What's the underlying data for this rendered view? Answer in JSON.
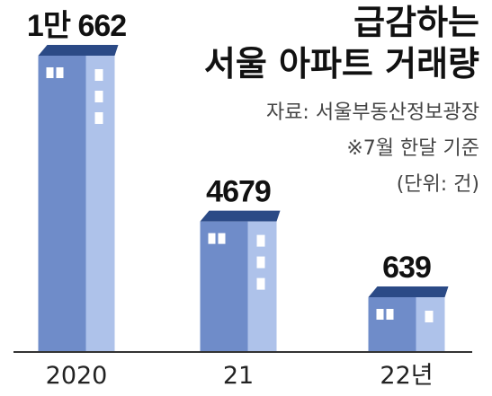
{
  "title": {
    "line1": "급감하는",
    "line2": "서울 아파트 거래량"
  },
  "notes": {
    "source": "자료: 서울부동산정보광장",
    "basis": "※7월 한달 기준",
    "unit": "(단위: 건)"
  },
  "chart_data": {
    "type": "bar",
    "categories": [
      "2020",
      "21",
      "22년"
    ],
    "values": [
      10662,
      4679,
      639
    ],
    "value_labels": [
      "1만 662",
      "4679",
      "639"
    ],
    "title": "급감하는 서울 아파트 거래량",
    "xlabel": "",
    "ylabel": "",
    "unit": "건",
    "grid": false,
    "legend": "none"
  },
  "colors": {
    "bar_front": "#6f8cc9",
    "bar_side": "#aec2ea",
    "roof": "#2b4a86",
    "window": "#ffffff",
    "baseline": "#333333"
  }
}
